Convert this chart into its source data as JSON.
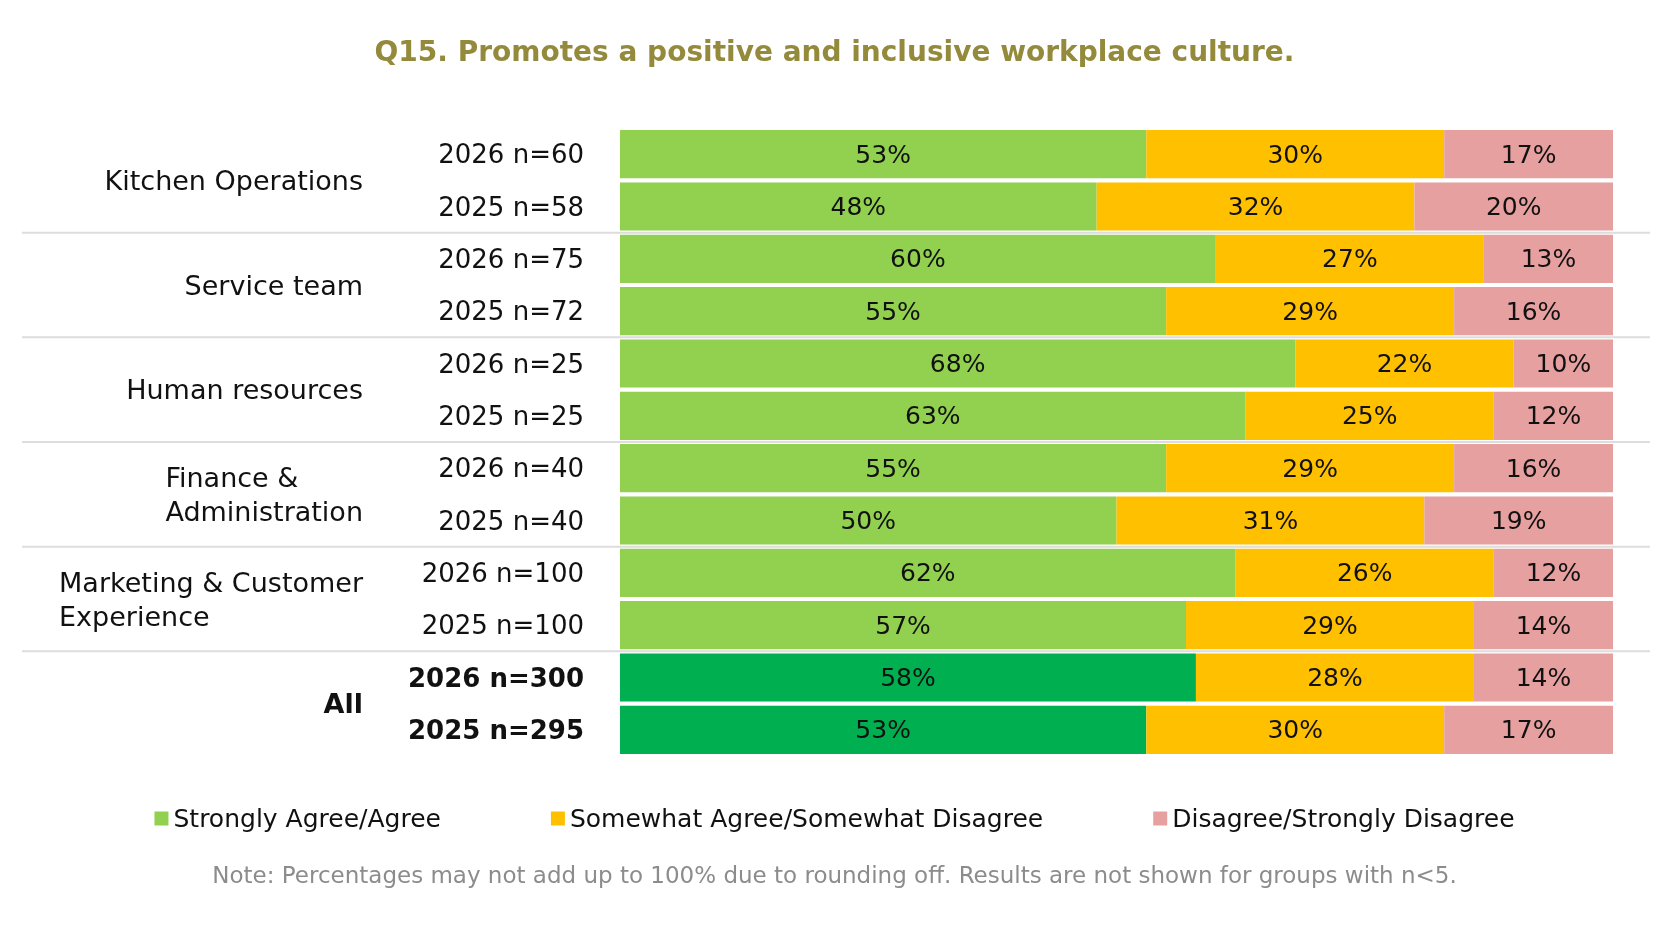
{
  "chart_data": {
    "type": "bar",
    "orientation": "horizontal",
    "stacked": true,
    "title": "Q15. Promotes a positive and inclusive workplace culture.",
    "categories": [
      "2026 n=60",
      "2025 n=58",
      "2026 n=75",
      "2025 n=72",
      "2026 n=25",
      "2025 n=25",
      "2026 n=40",
      "2025 n=40",
      "2026 n=100",
      "2025 n=100",
      "2026 n=300",
      "2025 n=295"
    ],
    "series": [
      {
        "name": "Strongly Agree/Agree",
        "color": "#92d050",
        "colors": [
          "#92d050",
          "#92d050",
          "#92d050",
          "#92d050",
          "#92d050",
          "#92d050",
          "#92d050",
          "#92d050",
          "#92d050",
          "#92d050",
          "#00b050",
          "#00b050"
        ],
        "values": [
          53,
          48,
          60,
          55,
          68,
          63,
          55,
          50,
          62,
          57,
          58,
          53
        ],
        "value_labels": [
          "53%",
          "48%",
          "60%",
          "55%",
          "68%",
          "63%",
          "55%",
          "50%",
          "62%",
          "57%",
          "58%",
          "53%"
        ]
      },
      {
        "name": "Somewhat Agree/Somewhat Disagree",
        "color": "#ffc000",
        "values": [
          30,
          32,
          27,
          29,
          22,
          25,
          29,
          31,
          26,
          29,
          28,
          30
        ],
        "value_labels": [
          "30%",
          "32%",
          "27%",
          "29%",
          "22%",
          "25%",
          "29%",
          "31%",
          "26%",
          "29%",
          "28%",
          "30%"
        ]
      },
      {
        "name": "Disagree/Strongly Disagree",
        "color": "#e6a0a0",
        "values": [
          17,
          20,
          13,
          16,
          10,
          12,
          16,
          19,
          12,
          14,
          14,
          17
        ],
        "value_labels": [
          "17%",
          "20%",
          "13%",
          "16%",
          "10%",
          "12%",
          "16%",
          "19%",
          "12%",
          "14%",
          "14%",
          "17%"
        ]
      }
    ],
    "annotations": [
      "Kitchen Operations",
      "Service team",
      "Human resources",
      "Finance &\nAdministration",
      "Marketing & Customer\nExperience",
      "All",
      "Note: Percentages may not add up to 100% due to rounding off. Results are not shown for groups with n<5."
    ],
    "legend": "bottom",
    "grid": false
  }
}
